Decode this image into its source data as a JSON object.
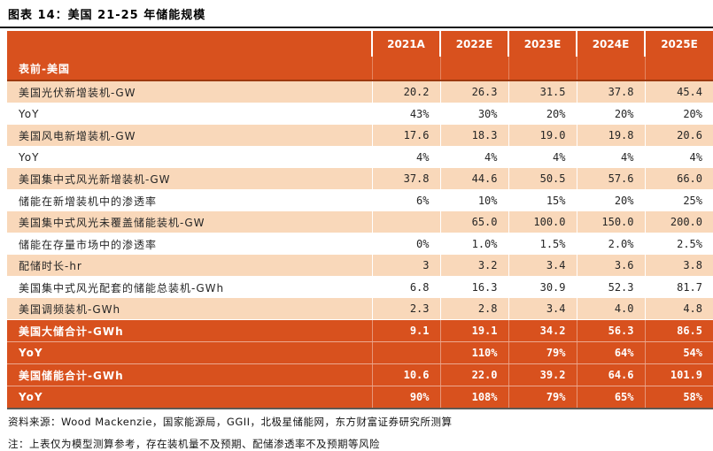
{
  "page": {
    "title": "图表 14：美国 21-25 年储能规模",
    "source_note": "资料来源：Wood Mackenzie，国家能源局，GGII，北极星储能网，东方财富证券研究所测算",
    "clipped_note": "注：上表仅为模型测算参考，存在装机量不及预期、配储渗透率不及预期等风险"
  },
  "colors": {
    "header_orange": "#d8511e",
    "row_peach": "#f9d8ba",
    "divider_maroon": "#9e3a10",
    "table_bottom_border": "#5e5954"
  },
  "table": {
    "group_label": "表前-美国",
    "columns": [
      "2021A",
      "2022E",
      "2023E",
      "2024E",
      "2025E"
    ],
    "rows": [
      {
        "label": "美国光伏新增装机-GW",
        "style": "peach",
        "values": [
          "20.2",
          "26.3",
          "31.5",
          "37.8",
          "45.4"
        ]
      },
      {
        "label": "YoY",
        "style": "white",
        "values": [
          "43%",
          "30%",
          "20%",
          "20%",
          "20%"
        ]
      },
      {
        "label": "美国风电新增装机-GW",
        "style": "peach",
        "values": [
          "17.6",
          "18.3",
          "19.0",
          "19.8",
          "20.6"
        ]
      },
      {
        "label": "YoY",
        "style": "white",
        "values": [
          "4%",
          "4%",
          "4%",
          "4%",
          "4%"
        ]
      },
      {
        "label": "美国集中式风光新增装机-GW",
        "style": "peach",
        "values": [
          "37.8",
          "44.6",
          "50.5",
          "57.6",
          "66.0"
        ]
      },
      {
        "label": "储能在新增装机中的渗透率",
        "style": "white",
        "values": [
          "6%",
          "10%",
          "15%",
          "20%",
          "25%"
        ]
      },
      {
        "label": "美国集中式风光未覆盖储能装机-GW",
        "style": "peach",
        "values": [
          "",
          "65.0",
          "100.0",
          "150.0",
          "200.0"
        ]
      },
      {
        "label": "储能在存量市场中的渗透率",
        "style": "white",
        "values": [
          "0%",
          "1.0%",
          "1.5%",
          "2.0%",
          "2.5%"
        ]
      },
      {
        "label": "配储时长-hr",
        "style": "peach",
        "values": [
          "3",
          "3.2",
          "3.4",
          "3.6",
          "3.8"
        ]
      },
      {
        "label": "美国集中式风光配套的储能总装机-GWh",
        "style": "white",
        "values": [
          "6.8",
          "16.3",
          "30.9",
          "52.3",
          "81.7"
        ]
      },
      {
        "label": "美国调频装机-GWh",
        "style": "peach",
        "values": [
          "2.3",
          "2.8",
          "3.4",
          "4.0",
          "4.8"
        ]
      },
      {
        "label": "美国大储合计-GWh",
        "style": "dark",
        "values": [
          "9.1",
          "19.1",
          "34.2",
          "56.3",
          "86.5"
        ]
      },
      {
        "label": "YoY",
        "style": "dark",
        "values": [
          "",
          "110%",
          "79%",
          "64%",
          "54%"
        ]
      },
      {
        "label": "美国储能合计-GWh",
        "style": "dark",
        "values": [
          "10.6",
          "22.0",
          "39.2",
          "64.6",
          "101.9"
        ]
      },
      {
        "label": "YoY",
        "style": "dark",
        "values": [
          "90%",
          "108%",
          "79%",
          "65%",
          "58%"
        ]
      }
    ]
  }
}
